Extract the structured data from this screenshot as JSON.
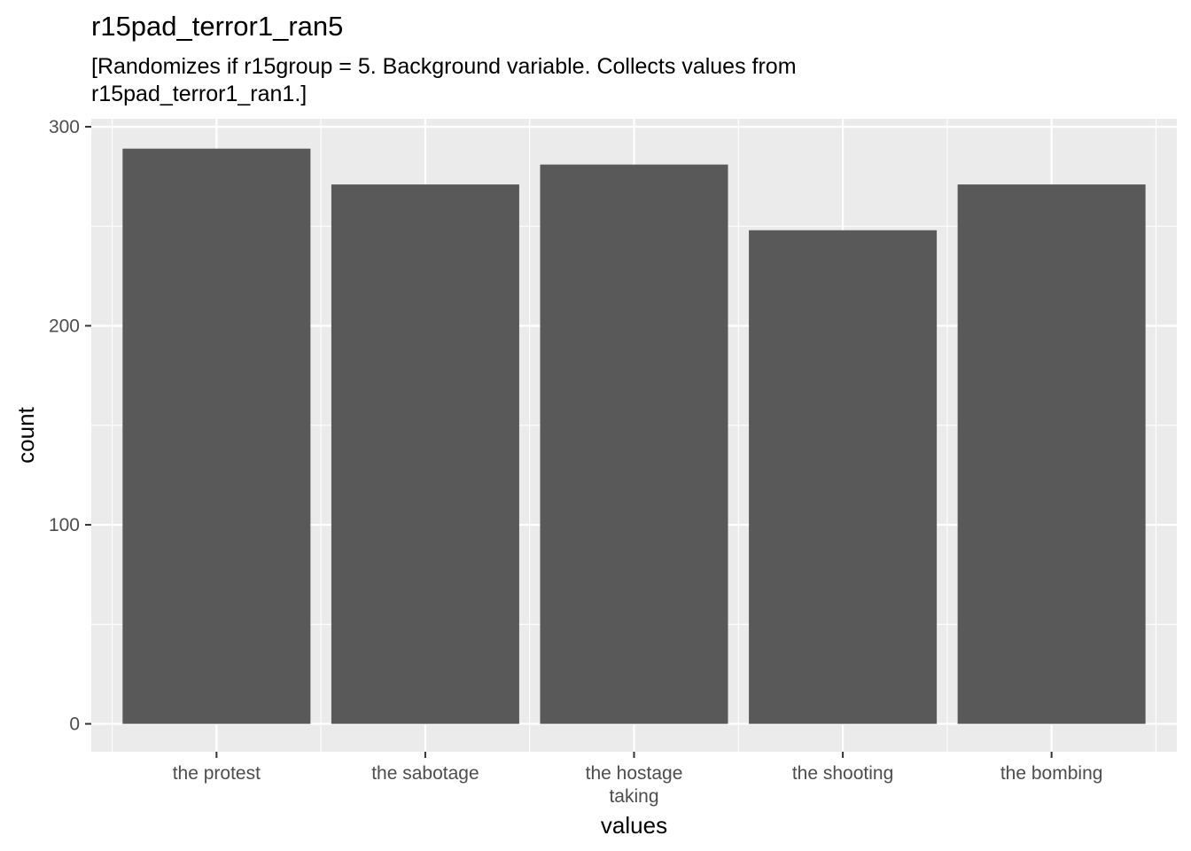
{
  "chart_data": {
    "type": "bar",
    "title": "r15pad_terror1_ran5",
    "subtitle_lines": [
      "[Randomizes if r15group = 5. Background variable. Collects values from",
      "r15pad_terror1_ran1.]"
    ],
    "xlabel": "values",
    "ylabel": "count",
    "categories": [
      [
        "the protest"
      ],
      [
        "the sabotage"
      ],
      [
        "the hostage",
        "taking"
      ],
      [
        "the shooting"
      ],
      [
        "the bombing"
      ]
    ],
    "values": [
      289,
      271,
      281,
      248,
      271
    ],
    "ylim": [
      -14,
      304
    ],
    "yticks": [
      0,
      100,
      200,
      300
    ],
    "grid": true,
    "bar_color": "#595959",
    "panel_color": "#ebebeb",
    "grid_color": "#ffffff"
  }
}
